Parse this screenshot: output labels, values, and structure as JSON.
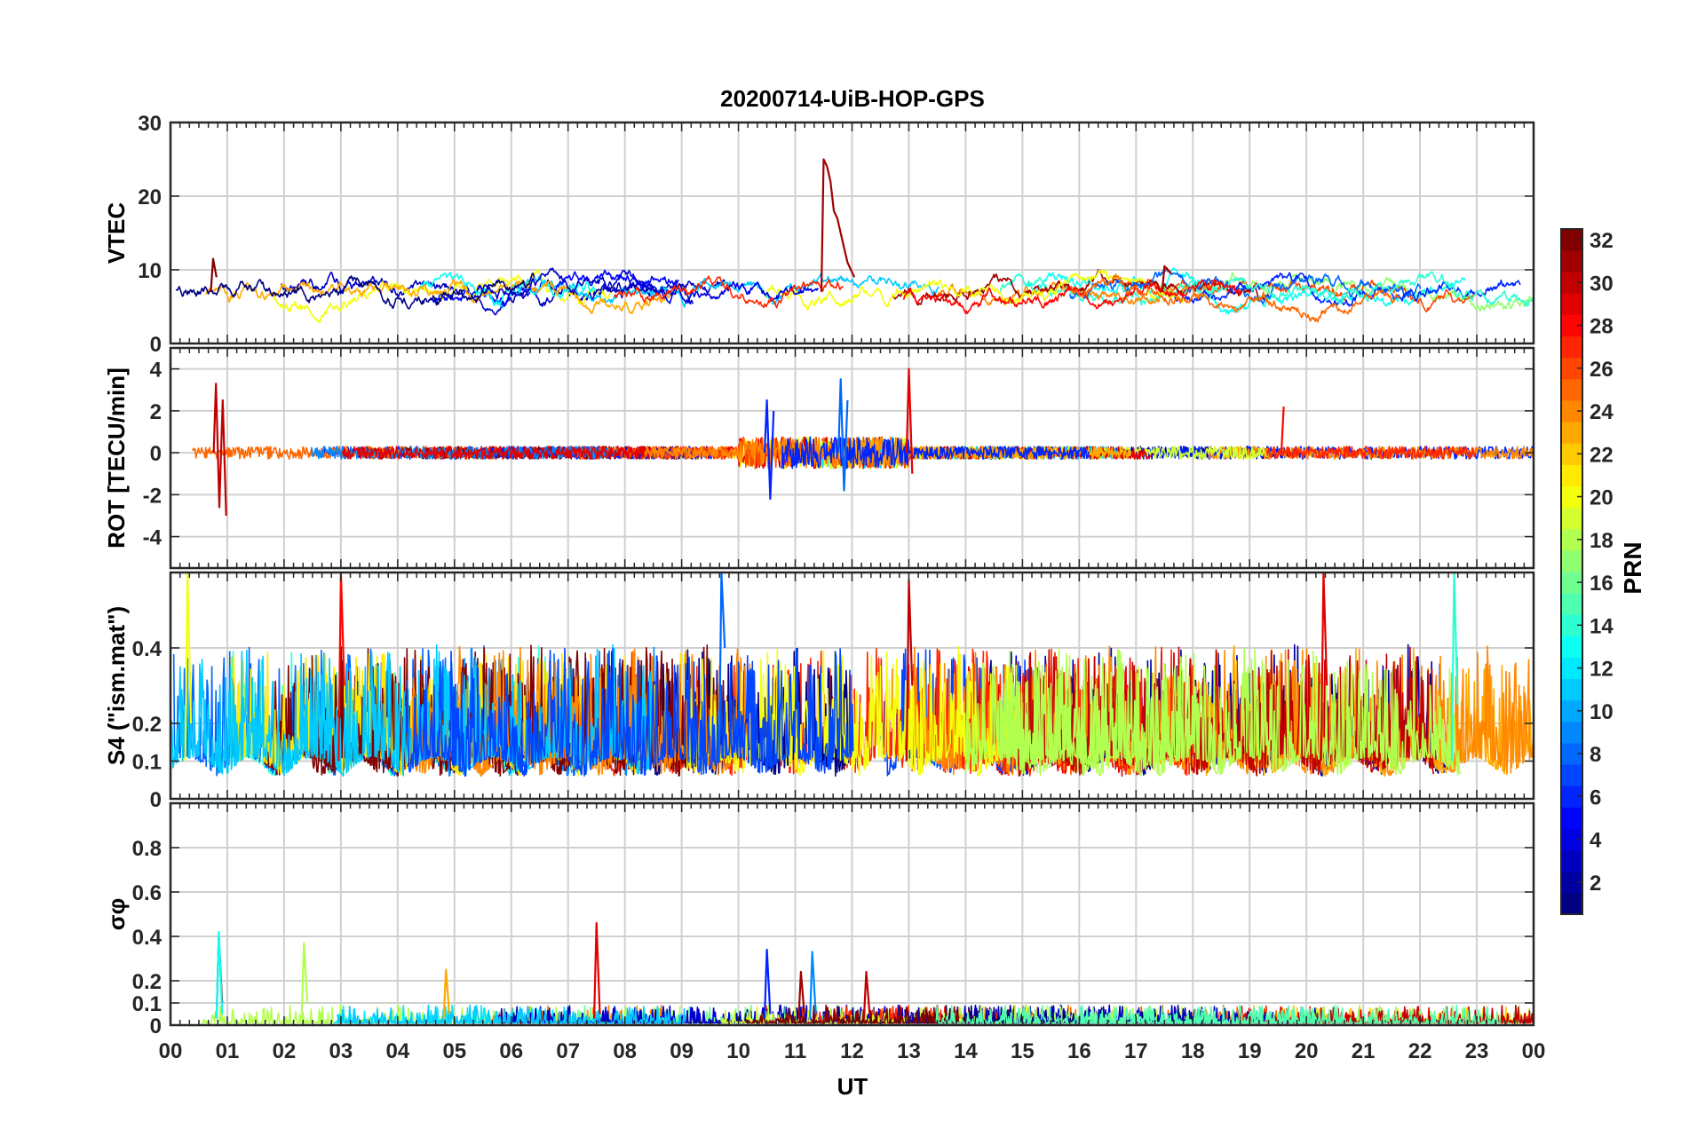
{
  "title": "20200714-UiB-HOP-GPS",
  "colorbar": {
    "label": "PRN",
    "range": [
      1,
      32
    ],
    "ticks": [
      2,
      4,
      6,
      8,
      10,
      12,
      14,
      16,
      18,
      20,
      22,
      24,
      26,
      28,
      30,
      32
    ]
  },
  "x_axis": {
    "label": "UT",
    "range": [
      0,
      24
    ],
    "tick_labels": [
      "00",
      "01",
      "02",
      "03",
      "04",
      "05",
      "06",
      "07",
      "08",
      "09",
      "10",
      "11",
      "12",
      "13",
      "14",
      "15",
      "16",
      "17",
      "18",
      "19",
      "20",
      "21",
      "22",
      "23",
      "00"
    ]
  },
  "chart_data": [
    {
      "type": "line",
      "panel": "vtec",
      "ylabel": "VTEC",
      "ylim": [
        0,
        30
      ],
      "yticks": [
        0,
        10,
        20,
        30
      ],
      "grid": true,
      "baseline": 7,
      "noise": 1.0,
      "events": [
        {
          "t": 11.5,
          "prn": 31,
          "values": [
            25,
            24,
            22,
            18,
            17,
            15,
            13,
            11,
            10,
            9
          ]
        },
        {
          "t": 0.75,
          "prn": 32,
          "values": [
            11.5,
            9
          ]
        },
        {
          "t": 17.5,
          "prn": 31,
          "values": [
            10.5,
            10,
            9.5
          ]
        }
      ]
    },
    {
      "type": "line",
      "panel": "rot",
      "ylabel": "ROT [TECU/min]",
      "ylim": [
        -5.5,
        5
      ],
      "yticks": [
        -4,
        -2,
        0,
        2,
        4
      ],
      "grid": true,
      "baseline": 0,
      "noise": 0.3,
      "events": [
        {
          "t": 0.8,
          "prn": 30,
          "values": [
            3.3,
            -2.6,
            2.5,
            -3.0
          ]
        },
        {
          "t": 13.0,
          "prn": 29,
          "values": [
            4.0,
            -1.0
          ]
        },
        {
          "t": 11.8,
          "prn": 8,
          "values": [
            3.5,
            -1.8,
            2.5
          ]
        },
        {
          "t": 10.5,
          "prn": 6,
          "values": [
            2.5,
            -2.2,
            2.0
          ]
        },
        {
          "t": 19.6,
          "prn": 28,
          "values": [
            2.2
          ]
        }
      ]
    },
    {
      "type": "line",
      "panel": "s4",
      "ylabel": "S4 (\"ism.mat\")",
      "ylim": [
        0,
        0.6
      ],
      "yticks": [
        0,
        0.1,
        0.2,
        0.4
      ],
      "grid": true,
      "baseline": 0.1,
      "noise": 0.08,
      "events": [
        {
          "t": 3.0,
          "prn": 28,
          "values": [
            0.6,
            0.3
          ]
        },
        {
          "t": 9.7,
          "prn": 8,
          "values": [
            0.6,
            0.4
          ]
        },
        {
          "t": 20.3,
          "prn": 29,
          "values": [
            0.6,
            0.3
          ]
        },
        {
          "t": 22.6,
          "prn": 14,
          "values": [
            0.6,
            0.25
          ]
        },
        {
          "t": 13.0,
          "prn": 30,
          "values": [
            0.58,
            0.3
          ]
        },
        {
          "t": 0.3,
          "prn": 20,
          "values": [
            0.6,
            0.2
          ]
        }
      ]
    },
    {
      "type": "line",
      "panel": "sigma_phi",
      "ylabel": "σφ",
      "ylim": [
        0,
        1
      ],
      "yticks": [
        0,
        0.1,
        0.2,
        0.4,
        0.6,
        0.8
      ],
      "grid": true,
      "baseline": 0.03,
      "noise": 0.02,
      "events": [
        {
          "t": 7.5,
          "prn": 29,
          "values": [
            0.46,
            0.05
          ]
        },
        {
          "t": 0.85,
          "prn": 32,
          "values": [
            0.4,
            0.1
          ]
        },
        {
          "t": 0.85,
          "prn": 13,
          "values": [
            0.42,
            0.05
          ]
        },
        {
          "t": 2.35,
          "prn": 18,
          "values": [
            0.37,
            0.1
          ]
        },
        {
          "t": 10.5,
          "prn": 6,
          "values": [
            0.34,
            0.05
          ]
        },
        {
          "t": 11.3,
          "prn": 9,
          "values": [
            0.33,
            0.05
          ]
        },
        {
          "t": 11.1,
          "prn": 31,
          "values": [
            0.24,
            0.05
          ]
        },
        {
          "t": 12.25,
          "prn": 30,
          "values": [
            0.24,
            0.05
          ]
        },
        {
          "t": 4.85,
          "prn": 23,
          "values": [
            0.25,
            0.05
          ]
        }
      ]
    }
  ]
}
